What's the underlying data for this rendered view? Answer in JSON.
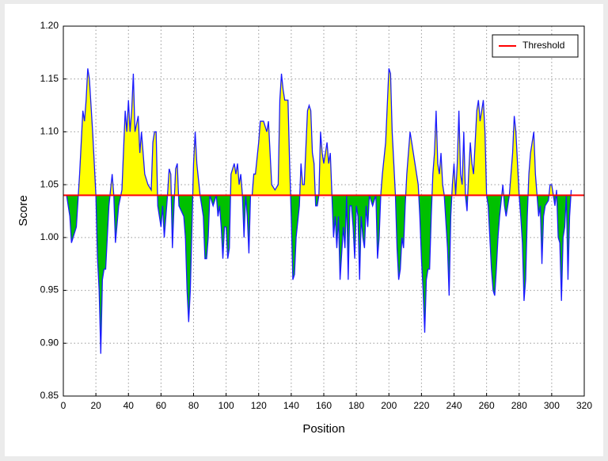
{
  "chart_data": {
    "type": "line",
    "xlabel": "Position",
    "ylabel": "Score",
    "xlim": [
      0,
      320
    ],
    "xticks": [
      0,
      20,
      40,
      60,
      80,
      100,
      120,
      140,
      160,
      180,
      200,
      220,
      240,
      260,
      280,
      300,
      320
    ],
    "ylim": [
      0.85,
      1.2
    ],
    "yticks": [
      0.85,
      {
        "value": 0.9,
        "label": "0.90"
      },
      0.95,
      {
        "value": 1.0,
        "label": "1.00"
      },
      1.05,
      {
        "value": 1.1,
        "label": "1.10"
      },
      1.15,
      {
        "value": 1.2,
        "label": "1.20"
      }
    ],
    "grid": true,
    "legend": "upper right",
    "threshold": {
      "name": "Threshold",
      "value": 1.04,
      "color": "#ff0000"
    },
    "above_color": "#ffff00",
    "below_color": "#00c000",
    "series": [
      {
        "color": "#1a1aff",
        "x": [
          2,
          4,
          5,
          6,
          8,
          10,
          12,
          13,
          14,
          15,
          16,
          18,
          19,
          20,
          21,
          22,
          23,
          24,
          25,
          26,
          28,
          30,
          31,
          32,
          34,
          36,
          38,
          39,
          40,
          41,
          42,
          43,
          44,
          46,
          47,
          48,
          50,
          52,
          54,
          55,
          56,
          57,
          58,
          59,
          60,
          61,
          62,
          64,
          65,
          66,
          67,
          68,
          69,
          70,
          71,
          74,
          75,
          76,
          77,
          78,
          79,
          80,
          81,
          82,
          84,
          86,
          87,
          88,
          89,
          90,
          92,
          94,
          95,
          96,
          97,
          98,
          99,
          100,
          101,
          102,
          103,
          105,
          106,
          107,
          108,
          109,
          110,
          111,
          112,
          113,
          114,
          115,
          116,
          117,
          118,
          120,
          121,
          123,
          125,
          126,
          128,
          130,
          132,
          133,
          134,
          135,
          136,
          138,
          139,
          140,
          141,
          142,
          143,
          145,
          146,
          147,
          148,
          150,
          151,
          152,
          153,
          154,
          155,
          156,
          157,
          158,
          159,
          160,
          162,
          163,
          164,
          165,
          166,
          167,
          168,
          169,
          170,
          172,
          173,
          174,
          175,
          176,
          177,
          178,
          179,
          180,
          181,
          182,
          183,
          184,
          185,
          186,
          187,
          188,
          190,
          192,
          193,
          194,
          195,
          196,
          198,
          200,
          201,
          202,
          203,
          204,
          205,
          206,
          207,
          208,
          209,
          210,
          211,
          212,
          213,
          214,
          216,
          218,
          219,
          220,
          221,
          222,
          223,
          224,
          225,
          226,
          227,
          228,
          229,
          230,
          231,
          232,
          233,
          234,
          236,
          237,
          238,
          239,
          240,
          241,
          242,
          243,
          244,
          245,
          246,
          247,
          248,
          249,
          250,
          251,
          252,
          254,
          255,
          256,
          257,
          258,
          259,
          260,
          261,
          262,
          263,
          264,
          265,
          266,
          267,
          268,
          270,
          271,
          272,
          274,
          276,
          277,
          278,
          280,
          281,
          282,
          283,
          284,
          285,
          286,
          287,
          288,
          289,
          290,
          291,
          292,
          293,
          294,
          295,
          296,
          298,
          299,
          300,
          301,
          302,
          303,
          304,
          305,
          306,
          307,
          308,
          309,
          310,
          311,
          312
        ],
        "values": [
          1.04,
          1.02,
          0.995,
          1.0,
          1.01,
          1.06,
          1.12,
          1.11,
          1.13,
          1.16,
          1.15,
          1.1,
          1.07,
          1.04,
          0.98,
          0.95,
          0.89,
          0.96,
          0.97,
          0.97,
          1.03,
          1.06,
          1.04,
          0.995,
          1.03,
          1.045,
          1.12,
          1.1,
          1.13,
          1.1,
          1.12,
          1.155,
          1.1,
          1.115,
          1.08,
          1.1,
          1.06,
          1.05,
          1.045,
          1.09,
          1.1,
          1.1,
          1.03,
          1.02,
          1.01,
          1.03,
          1.0,
          1.04,
          1.065,
          1.06,
          0.99,
          1.03,
          1.065,
          1.07,
          1.03,
          1.02,
          1.0,
          0.95,
          0.92,
          0.95,
          1.01,
          1.07,
          1.1,
          1.07,
          1.04,
          1.02,
          0.98,
          0.98,
          1.0,
          1.04,
          1.03,
          1.04,
          1.02,
          1.03,
          1.01,
          0.98,
          1.01,
          1.01,
          0.98,
          0.99,
          1.06,
          1.07,
          1.06,
          1.07,
          1.05,
          1.06,
          1.04,
          1.0,
          1.04,
          1.02,
          0.985,
          1.04,
          1.04,
          1.06,
          1.06,
          1.09,
          1.11,
          1.11,
          1.1,
          1.11,
          1.05,
          1.045,
          1.05,
          1.13,
          1.155,
          1.14,
          1.13,
          1.13,
          1.07,
          1.02,
          0.96,
          0.965,
          1.0,
          1.03,
          1.07,
          1.05,
          1.05,
          1.12,
          1.125,
          1.12,
          1.08,
          1.07,
          1.03,
          1.03,
          1.04,
          1.1,
          1.08,
          1.07,
          1.09,
          1.07,
          1.08,
          1.04,
          1.0,
          1.02,
          0.99,
          1.02,
          0.96,
          1.01,
          0.99,
          1.04,
          0.96,
          1.03,
          1.03,
          1.01,
          0.98,
          1.03,
          1.02,
          0.96,
          1.02,
          1.0,
          0.99,
          1.03,
          1.01,
          1.04,
          1.03,
          1.04,
          0.98,
          1.0,
          1.04,
          1.06,
          1.09,
          1.16,
          1.155,
          1.1,
          1.07,
          1.04,
          0.99,
          0.96,
          0.97,
          1.0,
          0.99,
          1.03,
          1.06,
          1.08,
          1.1,
          1.09,
          1.07,
          1.05,
          1.02,
          0.98,
          0.95,
          0.91,
          0.96,
          0.97,
          0.97,
          1.02,
          1.06,
          1.08,
          1.12,
          1.07,
          1.06,
          1.08,
          1.05,
          1.04,
          0.99,
          0.945,
          1.02,
          1.05,
          1.07,
          1.04,
          1.07,
          1.12,
          1.06,
          1.05,
          1.1,
          1.04,
          1.025,
          1.06,
          1.09,
          1.07,
          1.06,
          1.12,
          1.13,
          1.11,
          1.12,
          1.13,
          1.1,
          1.04,
          1.03,
          1.0,
          0.97,
          0.95,
          0.945,
          0.97,
          1.0,
          1.02,
          1.05,
          1.03,
          1.02,
          1.04,
          1.08,
          1.115,
          1.1,
          1.04,
          1.02,
          0.995,
          0.94,
          0.96,
          1.02,
          1.06,
          1.08,
          1.09,
          1.1,
          1.06,
          1.04,
          1.02,
          1.03,
          0.975,
          1.02,
          1.03,
          1.035,
          1.05,
          1.05,
          1.04,
          1.03,
          1.045,
          1.0,
          0.995,
          0.94,
          1.0,
          1.01,
          1.04,
          0.96,
          1.02,
          1.045
        ]
      }
    ]
  }
}
